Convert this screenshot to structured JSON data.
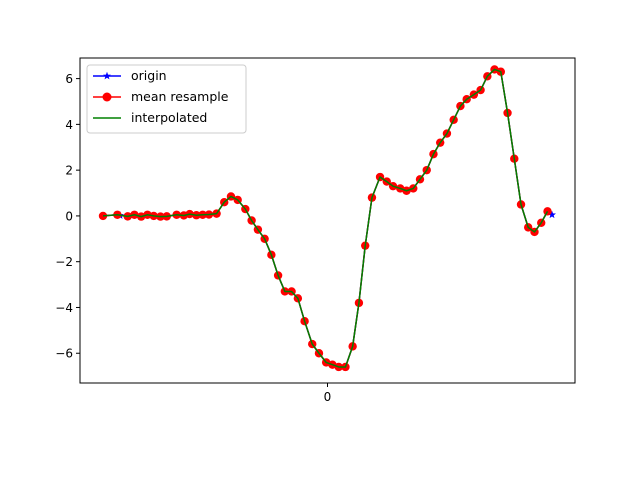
{
  "chart_data": {
    "type": "line",
    "title": "",
    "xlabel": "",
    "ylabel": "",
    "ylim": [
      -7.3,
      6.9
    ],
    "yticks": [
      -6,
      -4,
      -2,
      0,
      2,
      4,
      6
    ],
    "xtick_labels": [
      "0"
    ],
    "legend": {
      "placement": "upper-left",
      "entries": [
        "origin",
        "mean resample",
        "interpolated"
      ]
    },
    "grid": false,
    "series": [
      {
        "name": "origin",
        "color": "#0000ff",
        "marker": "star",
        "x": [
          0.0,
          0.032,
          0.038,
          0.055,
          0.07,
          0.085,
          0.099,
          0.113,
          0.128,
          0.142,
          0.164,
          0.18,
          0.193,
          0.208,
          0.222,
          0.236,
          0.253,
          0.27,
          0.285,
          0.3,
          0.317,
          0.331,
          0.345,
          0.36,
          0.375,
          0.39,
          0.405,
          0.42,
          0.434,
          0.449,
          0.466,
          0.481,
          0.497,
          0.511,
          0.525,
          0.54,
          0.556,
          0.57,
          0.584,
          0.599,
          0.617,
          0.632,
          0.646,
          0.662,
          0.676,
          0.691,
          0.706,
          0.721,
          0.736,
          0.751,
          0.766,
          0.781,
          0.796,
          0.81,
          0.826,
          0.841,
          0.856,
          0.872,
          0.886,
          0.901,
          0.916,
          0.931,
          0.947,
          0.961,
          0.976,
          0.99,
          1.0
        ],
        "y": [
          0.0,
          0.05,
          0.02,
          -0.02,
          0.05,
          -0.03,
          0.05,
          0.0,
          -0.03,
          -0.02,
          0.05,
          0.02,
          0.08,
          0.03,
          0.05,
          0.06,
          0.1,
          0.6,
          0.85,
          0.7,
          0.3,
          -0.2,
          -0.6,
          -1.0,
          -1.7,
          -2.6,
          -3.3,
          -3.3,
          -3.6,
          -4.6,
          -5.6,
          -6.0,
          -6.4,
          -6.5,
          -6.6,
          -6.6,
          -5.7,
          -3.8,
          -1.3,
          0.8,
          1.7,
          1.5,
          1.3,
          1.2,
          1.1,
          1.2,
          1.6,
          2.0,
          2.7,
          3.2,
          3.6,
          4.2,
          4.8,
          5.1,
          5.3,
          5.5,
          6.1,
          6.4,
          6.3,
          4.5,
          2.5,
          0.5,
          -0.5,
          -0.7,
          -0.3,
          0.2,
          0.05
        ]
      },
      {
        "name": "mean resample",
        "color": "#ff0000",
        "marker": "circle",
        "x": [
          0.0,
          0.032,
          0.055,
          0.07,
          0.085,
          0.099,
          0.113,
          0.128,
          0.142,
          0.164,
          0.18,
          0.193,
          0.208,
          0.222,
          0.236,
          0.253,
          0.27,
          0.285,
          0.3,
          0.317,
          0.331,
          0.345,
          0.36,
          0.375,
          0.39,
          0.405,
          0.42,
          0.434,
          0.449,
          0.466,
          0.481,
          0.497,
          0.511,
          0.525,
          0.54,
          0.556,
          0.57,
          0.584,
          0.599,
          0.617,
          0.632,
          0.646,
          0.662,
          0.676,
          0.691,
          0.706,
          0.721,
          0.736,
          0.751,
          0.766,
          0.781,
          0.796,
          0.81,
          0.826,
          0.841,
          0.856,
          0.872,
          0.886,
          0.901,
          0.916,
          0.931,
          0.947,
          0.961,
          0.976,
          0.99
        ],
        "y": [
          0.0,
          0.05,
          -0.02,
          0.05,
          -0.03,
          0.05,
          0.0,
          -0.03,
          -0.02,
          0.05,
          0.02,
          0.08,
          0.03,
          0.05,
          0.06,
          0.1,
          0.6,
          0.85,
          0.7,
          0.3,
          -0.2,
          -0.6,
          -1.0,
          -1.7,
          -2.6,
          -3.3,
          -3.3,
          -3.6,
          -4.6,
          -5.6,
          -6.0,
          -6.4,
          -6.5,
          -6.6,
          -6.6,
          -5.7,
          -3.8,
          -1.3,
          0.8,
          1.7,
          1.5,
          1.3,
          1.2,
          1.1,
          1.2,
          1.6,
          2.0,
          2.7,
          3.2,
          3.6,
          4.2,
          4.8,
          5.1,
          5.3,
          5.5,
          6.1,
          6.4,
          6.3,
          4.5,
          2.5,
          0.5,
          -0.5,
          -0.7,
          -0.3,
          0.2
        ]
      },
      {
        "name": "interpolated",
        "color": "#008000",
        "marker": "none",
        "x": [
          0.0,
          0.032,
          0.055,
          0.07,
          0.085,
          0.099,
          0.113,
          0.128,
          0.142,
          0.164,
          0.18,
          0.193,
          0.208,
          0.222,
          0.236,
          0.253,
          0.27,
          0.285,
          0.3,
          0.317,
          0.331,
          0.345,
          0.36,
          0.375,
          0.39,
          0.405,
          0.42,
          0.434,
          0.449,
          0.466,
          0.481,
          0.497,
          0.511,
          0.525,
          0.54,
          0.556,
          0.57,
          0.584,
          0.599,
          0.617,
          0.632,
          0.646,
          0.662,
          0.676,
          0.691,
          0.706,
          0.721,
          0.736,
          0.751,
          0.766,
          0.781,
          0.796,
          0.81,
          0.826,
          0.841,
          0.856,
          0.872,
          0.886,
          0.901,
          0.916,
          0.931,
          0.947,
          0.961,
          0.976,
          0.99
        ],
        "y": [
          0.0,
          0.05,
          -0.02,
          0.05,
          -0.03,
          0.05,
          0.0,
          -0.03,
          -0.02,
          0.05,
          0.02,
          0.08,
          0.03,
          0.05,
          0.06,
          0.1,
          0.6,
          0.85,
          0.7,
          0.3,
          -0.2,
          -0.6,
          -1.0,
          -1.7,
          -2.6,
          -3.3,
          -3.3,
          -3.6,
          -4.6,
          -5.6,
          -6.0,
          -6.4,
          -6.5,
          -6.6,
          -6.6,
          -5.7,
          -3.8,
          -1.3,
          0.8,
          1.7,
          1.5,
          1.3,
          1.2,
          1.1,
          1.2,
          1.6,
          2.0,
          2.7,
          3.2,
          3.6,
          4.2,
          4.8,
          5.1,
          5.3,
          5.5,
          6.1,
          6.4,
          6.3,
          4.5,
          2.5,
          0.5,
          -0.5,
          -0.7,
          -0.3,
          0.2
        ]
      }
    ]
  }
}
